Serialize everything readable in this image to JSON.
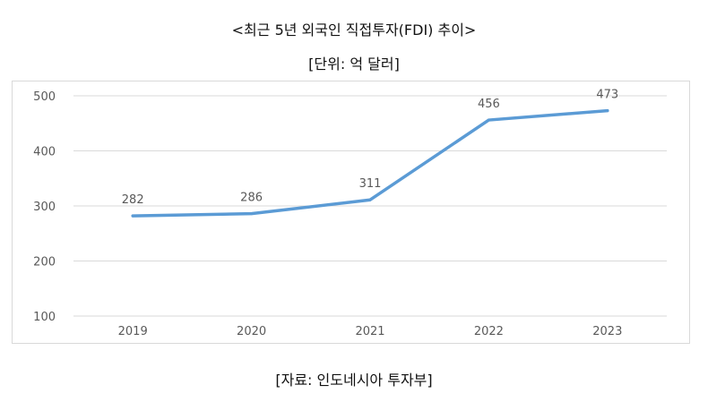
{
  "header": {
    "title": "<최근 5년 외국인 직접투자(FDI) 추이>",
    "unit": "[단위: 억 달러]"
  },
  "footer": {
    "source": "[자료: 인도네시아 투자부]"
  },
  "chart_data": {
    "type": "line",
    "categories": [
      "2019",
      "2020",
      "2021",
      "2022",
      "2023"
    ],
    "series": [
      {
        "values": [
          282,
          286,
          311,
          456,
          473
        ]
      }
    ],
    "data_labels": [
      "282",
      "286",
      "311",
      "456",
      "473"
    ],
    "y_ticks": [
      100,
      200,
      300,
      400,
      500
    ],
    "ylim": [
      100,
      500
    ],
    "grid": true,
    "legend": "none",
    "line_color": "#5b9bd5",
    "grid_color": "#d9d9d9",
    "text_color": "#595959"
  }
}
